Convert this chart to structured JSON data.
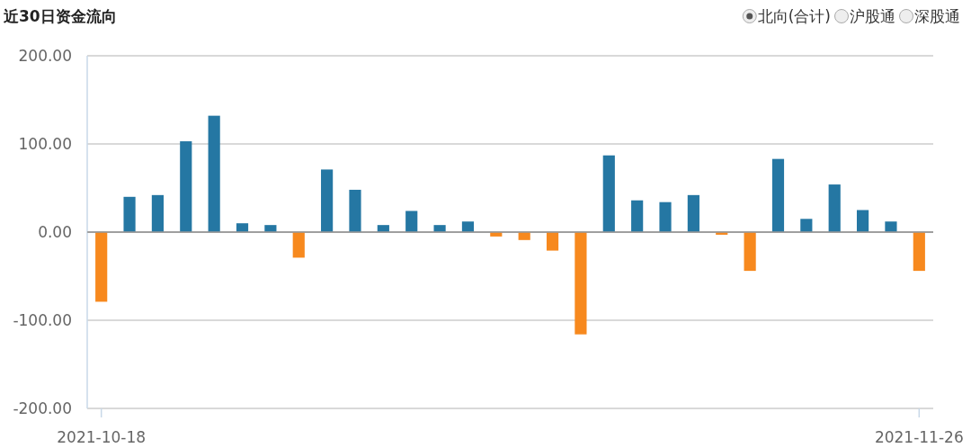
{
  "chart_data": {
    "type": "bar",
    "title": "近30日资金流向",
    "annotations": [
      "北向(合计)",
      "沪股通",
      "深股通"
    ],
    "categories": [
      "2021-10-18",
      null,
      null,
      null,
      null,
      null,
      null,
      null,
      null,
      null,
      null,
      null,
      null,
      null,
      null,
      null,
      null,
      null,
      null,
      null,
      null,
      null,
      null,
      null,
      null,
      null,
      null,
      null,
      null,
      "2021-11-26"
    ],
    "values": [
      -79,
      40,
      42,
      103,
      132,
      10,
      8,
      -29,
      71,
      48,
      8,
      24,
      8,
      12,
      -5,
      -9,
      -21,
      -116,
      87,
      36,
      34,
      42,
      -3,
      -44,
      83,
      15,
      54,
      25,
      12,
      -44
    ],
    "colors": [
      "#f7891e",
      "#2577a3",
      "#2577a3",
      "#2577a3",
      "#2577a3",
      "#2577a3",
      "#2577a3",
      "#f7891e",
      "#2577a3",
      "#2577a3",
      "#2577a3",
      "#2577a3",
      "#2577a3",
      "#2577a3",
      "#f7891e",
      "#f7891e",
      "#f7891e",
      "#f7891e",
      "#2577a3",
      "#2577a3",
      "#2577a3",
      "#2577a3",
      "#f7891e",
      "#f7891e",
      "#2577a3",
      "#2577a3",
      "#2577a3",
      "#2577a3",
      "#2577a3",
      "#f7891e"
    ],
    "ylim": [
      -200,
      200
    ],
    "yticks": [
      {
        "value": -200,
        "label": "-200.00"
      },
      {
        "value": -100,
        "label": "-100.00"
      },
      {
        "value": 0,
        "label": "0.00"
      },
      {
        "value": 100,
        "label": "100.00"
      },
      {
        "value": 200,
        "label": "200.00"
      }
    ],
    "grid": "y"
  }
}
